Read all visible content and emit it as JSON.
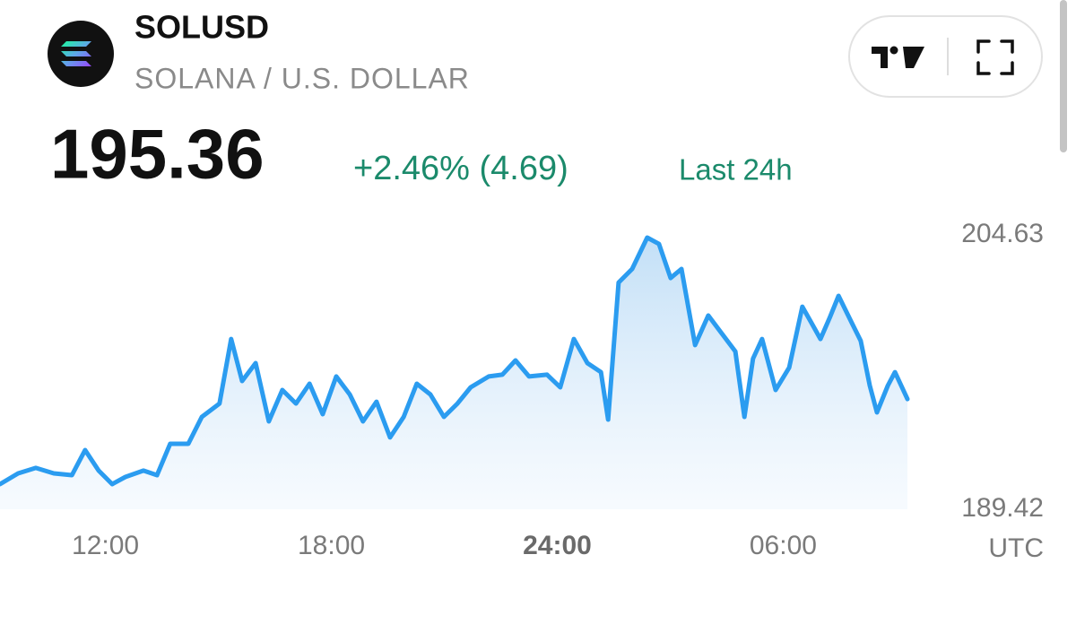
{
  "chart_data": {
    "type": "line",
    "title": "SOLUSD",
    "subtitle": "SOLANA / U.S. DOLLAR",
    "price": 195.36,
    "change": "+2.46% (4.69)",
    "period": "Last 24h",
    "x_label": "UTC",
    "color": "#2b9cf0",
    "x": [
      9.2,
      9.68,
      10.15,
      10.63,
      11.11,
      11.46,
      11.82,
      12.18,
      12.53,
      13.01,
      13.37,
      13.72,
      14.2,
      14.56,
      15.03,
      15.34,
      15.63,
      15.99,
      16.34,
      16.7,
      17.06,
      17.42,
      17.77,
      18.13,
      18.49,
      18.84,
      19.2,
      19.56,
      19.92,
      20.27,
      20.63,
      20.99,
      21.35,
      21.7,
      22.18,
      22.54,
      22.89,
      23.25,
      23.73,
      24.08,
      24.44,
      24.8,
      25.16,
      25.35,
      25.63,
      25.99,
      26.39,
      26.7,
      27.01,
      27.3,
      27.66,
      28.01,
      28.37,
      28.73,
      28.97,
      29.2,
      29.44,
      29.8,
      30.16,
      30.51,
      30.75,
      30.99,
      31.23,
      31.47,
      31.82,
      32.06,
      32.3,
      32.49,
      32.78,
      32.97,
      33.3
    ],
    "values": [
      190.81,
      191.41,
      191.71,
      191.41,
      191.31,
      192.7,
      191.56,
      190.81,
      191.21,
      191.56,
      191.31,
      193.05,
      193.05,
      194.54,
      195.28,
      198.86,
      196.53,
      197.52,
      194.29,
      196.03,
      195.28,
      196.38,
      194.69,
      196.78,
      195.78,
      194.29,
      195.38,
      193.4,
      194.54,
      196.38,
      195.78,
      194.54,
      195.28,
      196.18,
      196.78,
      196.88,
      197.67,
      196.78,
      196.88,
      196.18,
      198.86,
      197.52,
      197.02,
      194.39,
      201.99,
      202.74,
      204.48,
      204.13,
      202.24,
      202.74,
      198.52,
      200.16,
      199.16,
      198.17,
      194.54,
      197.77,
      198.86,
      196.03,
      197.27,
      200.65,
      199.76,
      198.86,
      200.01,
      201.25,
      199.76,
      198.76,
      196.28,
      194.79,
      196.28,
      197.02,
      195.53
    ],
    "xlim": [
      9.2,
      33.3
    ],
    "xticks": [
      {
        "value": 12,
        "label": "12:00"
      },
      {
        "value": 18,
        "label": "18:00"
      },
      {
        "value": 24,
        "label": "24:00"
      },
      {
        "value": 30,
        "label": "06:00"
      }
    ],
    "ylim": [
      189.42,
      204.63
    ],
    "yticks": [
      189.42,
      204.63
    ]
  }
}
